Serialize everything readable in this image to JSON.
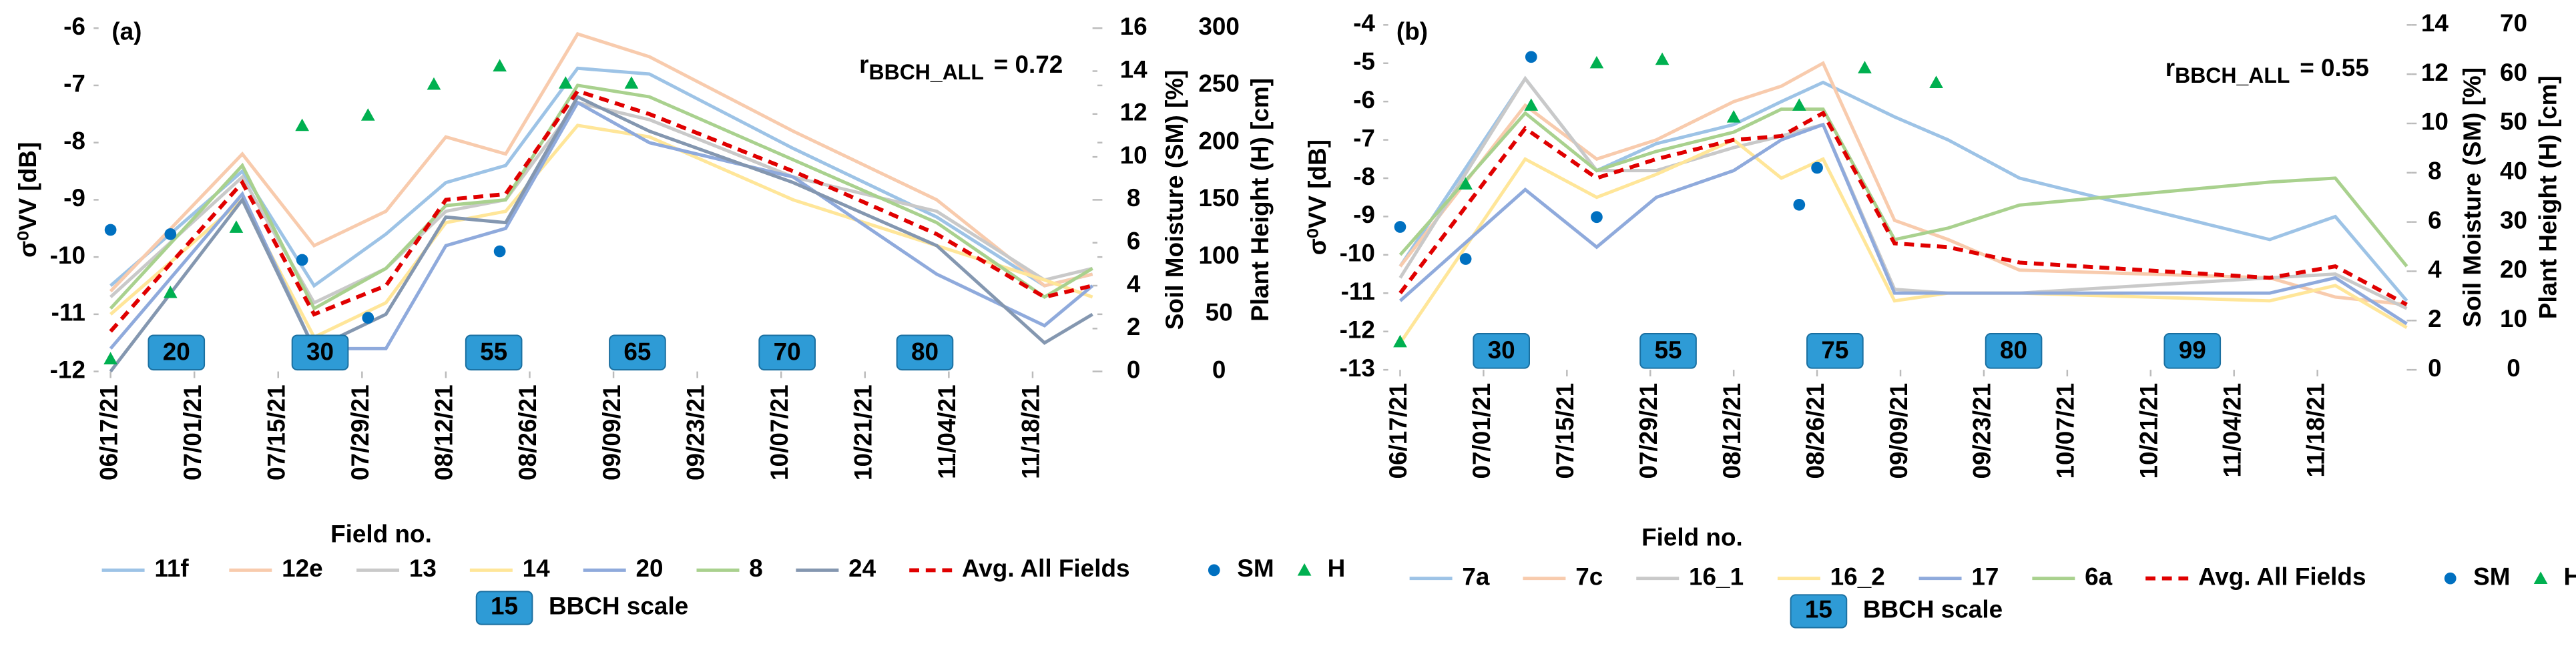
{
  "chart_data": [
    {
      "type": "line",
      "panel": "(a)",
      "annotation": {
        "r": "r",
        "sub": "BBCH_ALL",
        "text": "= 0.72"
      },
      "ylabel": "σ⁰VV [dB]",
      "y2label": "Soil Moisture (SM) [%]",
      "y3label": "Plant Height (H) [cm]",
      "legend_title": "Field no.",
      "xlim": [
        "06/15/21",
        "11/28/21"
      ],
      "xticks": [
        "06/17/21",
        "07/01/21",
        "07/15/21",
        "07/29/21",
        "08/12/21",
        "08/26/21",
        "09/09/21",
        "09/23/21",
        "10/07/21",
        "10/21/21",
        "11/04/21",
        "11/18/21"
      ],
      "ylim": [
        -12,
        -6
      ],
      "yticks": [
        -12,
        -11,
        -10,
        -9,
        -8,
        -7,
        -6
      ],
      "y2lim": [
        0,
        16
      ],
      "y2ticks": [
        0,
        2,
        4,
        6,
        8,
        10,
        12,
        14,
        16
      ],
      "y3lim": [
        0,
        300
      ],
      "y3ticks": [
        0,
        50,
        100,
        150,
        200,
        250,
        300
      ],
      "x": [
        "06/17/21",
        "07/09/21",
        "07/21/21",
        "08/02/21",
        "08/12/21",
        "08/22/21",
        "09/03/21",
        "09/15/21",
        "10/09/21",
        "11/02/21",
        "11/20/21",
        "11/28/21"
      ],
      "series": [
        {
          "name": "11f",
          "color": "#9dc3e6",
          "values": [
            -10.5,
            -8.5,
            -10.5,
            -9.6,
            -8.7,
            -8.4,
            -6.7,
            -6.8,
            -8.1,
            -9.3,
            -10.5,
            -10.3
          ]
        },
        {
          "name": "12e",
          "color": "#f8cbad",
          "values": [
            -10.6,
            -8.2,
            -9.8,
            -9.2,
            -7.9,
            -8.2,
            -6.1,
            -6.5,
            -7.8,
            -9.0,
            -10.5,
            -10.3
          ]
        },
        {
          "name": "13",
          "color": "#c9c9c9",
          "values": [
            -10.7,
            -8.6,
            -10.8,
            -10.2,
            -9.2,
            -9.0,
            -7.3,
            -7.6,
            -8.6,
            -9.2,
            -10.4,
            -10.2
          ]
        },
        {
          "name": "14",
          "color": "#ffe699",
          "values": [
            -11.0,
            -9.0,
            -11.4,
            -10.8,
            -9.4,
            -9.2,
            -7.7,
            -7.9,
            -9.0,
            -9.8,
            -10.4,
            -10.7
          ]
        },
        {
          "name": "20",
          "color": "#8faadc",
          "values": [
            -11.6,
            -8.9,
            -11.6,
            -11.6,
            -9.8,
            -9.5,
            -7.3,
            -8.0,
            -8.6,
            -10.3,
            -11.2,
            -10.5
          ]
        },
        {
          "name": "8",
          "color": "#a9d18e",
          "values": [
            -10.9,
            -8.4,
            -10.9,
            -10.2,
            -9.1,
            -9.0,
            -7.0,
            -7.2,
            -8.3,
            -9.4,
            -10.7,
            -10.2
          ]
        },
        {
          "name": "24",
          "color": "#8497b0",
          "values": [
            -12.0,
            -9.0,
            -11.6,
            -11.0,
            -9.3,
            -9.4,
            -7.2,
            -7.8,
            -8.7,
            -9.8,
            -11.5,
            -11.0
          ]
        },
        {
          "name": "Avg. All Fields",
          "color": "#e00000",
          "dash": true,
          "values": [
            -11.3,
            -8.7,
            -11.0,
            -10.5,
            -9.0,
            -8.9,
            -7.1,
            -7.5,
            -8.5,
            -9.6,
            -10.7,
            -10.5
          ]
        }
      ],
      "scatter": [
        {
          "name": "SM",
          "color": "#0070c0",
          "marker": "circle",
          "axis": "y2",
          "x": [
            "06/17/21",
            "06/27/21",
            "07/19/21",
            "07/30/21",
            "08/21/21"
          ],
          "values": [
            6.6,
            6.4,
            5.2,
            2.5,
            5.6
          ]
        },
        {
          "name": "H",
          "color": "#00b050",
          "marker": "triangle",
          "axis": "y3",
          "x": [
            "06/17/21",
            "06/27/21",
            "07/08/21",
            "07/19/21",
            "07/30/21",
            "08/10/21",
            "08/21/21",
            "09/01/21",
            "09/12/21"
          ],
          "values": [
            11,
            69,
            126,
            215,
            224,
            251,
            267,
            252,
            252
          ]
        }
      ],
      "bbch": {
        "x": [
          "06/28/21",
          "07/22/21",
          "08/20/21",
          "09/13/21",
          "10/08/21",
          "10/31/21"
        ],
        "labels": [
          "20",
          "30",
          "55",
          "65",
          "70",
          "80"
        ]
      },
      "bbch_legend": {
        "label": "15",
        "text": "BBCH scale"
      }
    },
    {
      "type": "line",
      "panel": "(b)",
      "annotation": {
        "r": "r",
        "sub": "BBCH_ALL",
        "text": "= 0.55"
      },
      "ylabel": "σ⁰VV [dB]",
      "y2label": "Soil Moisture (SM) [%]",
      "y3label": "Plant Height (H) [cm]",
      "legend_title": "Field no.",
      "xlim": [
        "06/15/21",
        "12/03/21"
      ],
      "xticks": [
        "06/17/21",
        "07/01/21",
        "07/15/21",
        "07/29/21",
        "08/12/21",
        "08/26/21",
        "09/09/21",
        "09/23/21",
        "10/07/21",
        "10/21/21",
        "11/04/21",
        "11/18/21"
      ],
      "ylim": [
        -13,
        -4
      ],
      "yticks": [
        -13,
        -12,
        -11,
        -10,
        -9,
        -8,
        -7,
        -6,
        -5,
        -4
      ],
      "y2lim": [
        0,
        14
      ],
      "y2ticks": [
        0,
        2,
        4,
        6,
        8,
        10,
        12,
        14
      ],
      "y3lim": [
        0,
        70
      ],
      "y3ticks": [
        0,
        10,
        20,
        30,
        40,
        50,
        60,
        70
      ],
      "x": [
        "06/17/21",
        "07/08/21",
        "07/20/21",
        "07/30/21",
        "08/12/21",
        "08/20/21",
        "08/27/21",
        "09/08/21",
        "09/17/21",
        "09/29/21",
        "11/10/21",
        "11/21/21",
        "12/03/21"
      ],
      "series": [
        {
          "name": "7a",
          "color": "#9dc3e6",
          "values": [
            -10.3,
            -5.4,
            -7.8,
            -7.1,
            -6.6,
            -6.0,
            -5.5,
            -6.4,
            -7.0,
            -8.0,
            -9.6,
            -9.0,
            -11.2
          ]
        },
        {
          "name": "7c",
          "color": "#f8cbad",
          "values": [
            -10.3,
            -6.1,
            -7.5,
            -7.0,
            -6.0,
            -5.6,
            -5.0,
            -9.1,
            -9.6,
            -10.4,
            -10.6,
            -11.1,
            -11.3
          ]
        },
        {
          "name": "16_1",
          "color": "#c9c9c9",
          "values": [
            -10.6,
            -5.4,
            -7.8,
            -7.8,
            -7.2,
            -6.9,
            -6.6,
            -10.9,
            -11.0,
            -11.0,
            -10.6,
            -10.5,
            -11.4
          ]
        },
        {
          "name": "16_2",
          "color": "#ffe699",
          "values": [
            -12.3,
            -7.5,
            -8.5,
            -7.9,
            -7.0,
            -8.0,
            -7.5,
            -11.2,
            -11.0,
            -11.0,
            -11.2,
            -10.8,
            -11.9
          ]
        },
        {
          "name": "17",
          "color": "#8faadc",
          "values": [
            -11.2,
            -8.3,
            -9.8,
            -8.5,
            -7.8,
            -7.0,
            -6.6,
            -11.0,
            -11.0,
            -11.0,
            -11.0,
            -10.6,
            -11.8
          ]
        },
        {
          "name": "6a",
          "color": "#a9d18e",
          "values": [
            -10.0,
            -6.3,
            -7.8,
            -7.3,
            -6.8,
            -6.2,
            -6.2,
            -9.6,
            -9.3,
            -8.7,
            -8.1,
            -8.0,
            -10.3
          ]
        },
        {
          "name": "Avg. All Fields",
          "color": "#e00000",
          "dash": true,
          "values": [
            -11.0,
            -6.7,
            -8.0,
            -7.5,
            -7.0,
            -6.9,
            -6.3,
            -9.7,
            -9.8,
            -10.2,
            -10.6,
            -10.3,
            -11.3
          ]
        }
      ],
      "scatter": [
        {
          "name": "SM",
          "color": "#0070c0",
          "marker": "circle",
          "axis": "y2",
          "x": [
            "06/17/21",
            "06/28/21",
            "07/09/21",
            "07/20/21",
            "08/23/21",
            "08/26/21"
          ],
          "values": [
            5.8,
            4.5,
            12.7,
            6.2,
            6.7,
            8.2
          ]
        },
        {
          "name": "H",
          "color": "#00b050",
          "marker": "triangle",
          "axis": "y3",
          "x": [
            "06/17/21",
            "06/28/21",
            "07/09/21",
            "07/20/21",
            "07/31/21",
            "08/12/21",
            "08/23/21",
            "09/03/21",
            "09/15/21"
          ],
          "values": [
            5.7,
            37.7,
            53.7,
            62.3,
            63,
            51.3,
            53.7,
            61.3,
            58.3
          ]
        }
      ],
      "bbch": {
        "x": [
          "07/04/21",
          "08/01/21",
          "08/29/21",
          "09/28/21",
          "10/28/21"
        ],
        "labels": [
          "30",
          "55",
          "75",
          "80",
          "99"
        ]
      },
      "bbch_legend": {
        "label": "15",
        "text": "BBCH scale"
      }
    }
  ]
}
